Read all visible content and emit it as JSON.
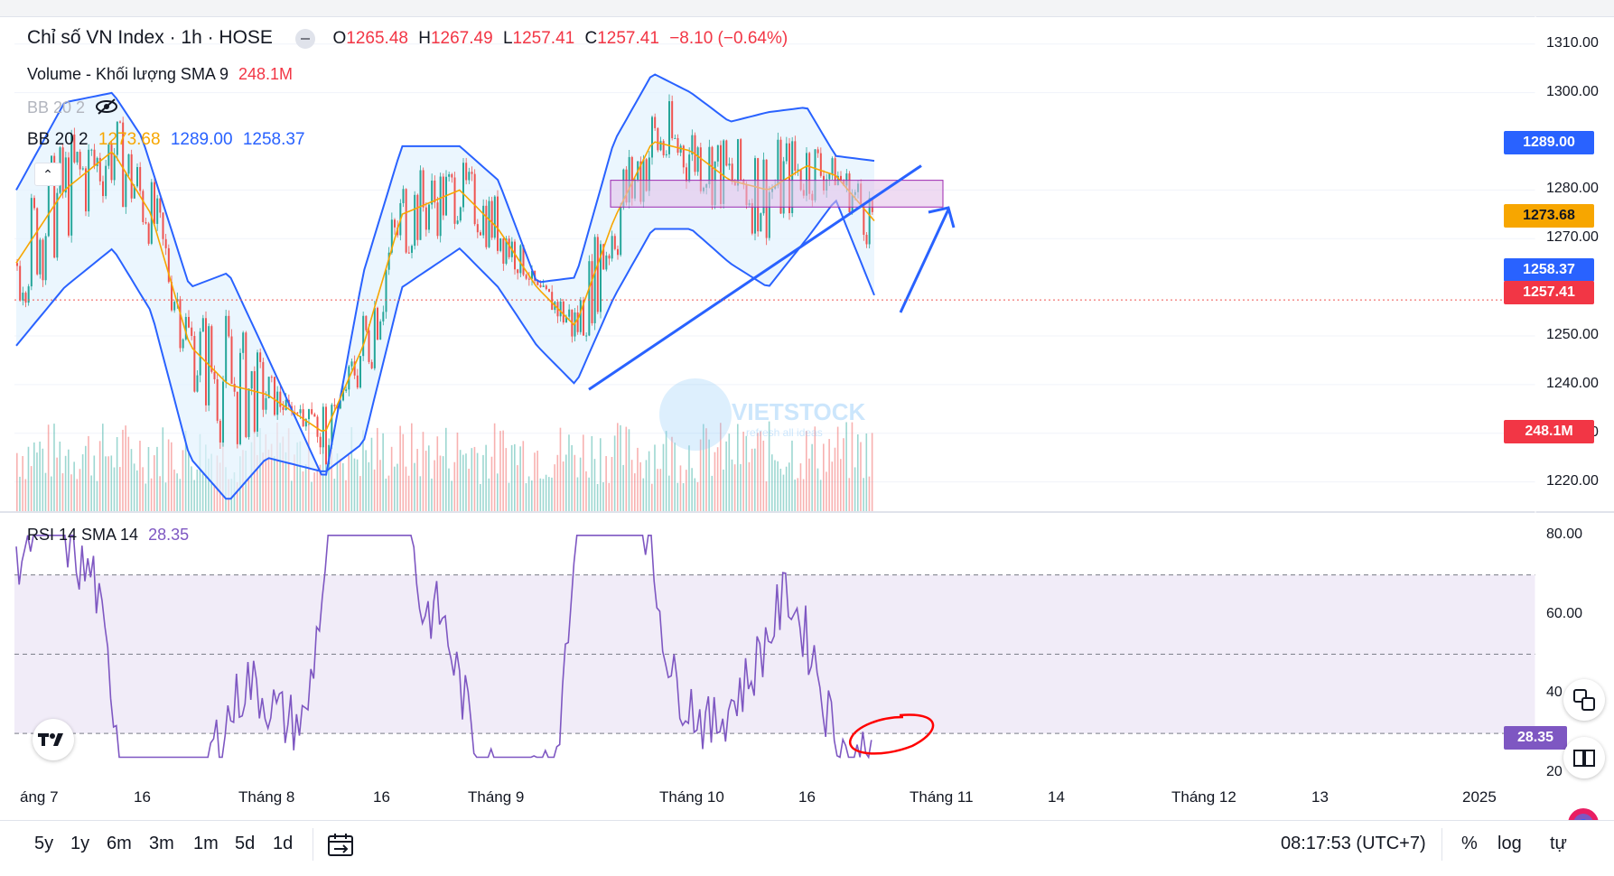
{
  "header": {
    "symbol_title": "Chỉ số VN Index · 1h · HOSE",
    "ohlc": {
      "o_label": "O",
      "o_value": "1265.48",
      "h_label": "H",
      "h_value": "1267.49",
      "l_label": "L",
      "l_value": "1257.41",
      "c_label": "C",
      "c_value": "1257.41",
      "change": "−8.10 (−0.64%)"
    },
    "volume_label": "Volume - Khối lượng SMA 9",
    "volume_value": "248.1M",
    "bb_hidden_label": "BB 20 2",
    "bb_label": "BB 20 2",
    "bb_mid": "1273.68",
    "bb_upper": "1289.00",
    "bb_lower": "1258.37",
    "rsi_label": "RSI 14 SMA 14",
    "rsi_value": "28.35"
  },
  "price_tags": {
    "upper": "1289.00",
    "mid": "1273.68",
    "lower": "1258.37",
    "last": "1257.41",
    "volume": "248.1M",
    "rsi": "28.35"
  },
  "colors": {
    "up": "#26a69a",
    "down": "#ef5350",
    "bb_band": "#2962ff",
    "bb_mid": "#f7a600",
    "bb_fill": "#e3f2fd",
    "rsi_line": "#7e57c2",
    "rsi_fill": "#ede7f6",
    "annotation_blue": "#2962ff",
    "annotation_red": "#ff0000",
    "zone_fill": "#e1bee7"
  },
  "watermark": {
    "text": "VIETSTOCK",
    "sub": "refresh all ideas"
  },
  "bottom_bar": {
    "ranges": [
      "5y",
      "1y",
      "6m",
      "3m",
      "1m",
      "5d",
      "1d"
    ],
    "time": "08:17:53 (UTC+7)",
    "percent": "%",
    "log": "log",
    "auto": "tự"
  },
  "chart_data": [
    {
      "type": "candlestick",
      "title": "Chỉ số VN Index · 1h · HOSE",
      "y_axis_ticks": [
        "1310.00",
        "1300.00",
        "1280.00",
        "1270.00",
        "1250.00",
        "1240.00",
        "1230.00",
        "1220.00"
      ],
      "ylim": [
        1214,
        1312
      ],
      "x_axis_ticks": [
        "áng 7",
        "16",
        "Tháng 8",
        "16",
        "Tháng 9",
        "Tháng 10",
        "16",
        "Tháng 11",
        "14",
        "Tháng 12",
        "13",
        "2025"
      ],
      "last_close": 1257.41,
      "series": [
        {
          "name": "BB upper",
          "points": [
            [
              0,
              1280
            ],
            [
              5,
              1298
            ],
            [
              10,
              1300
            ],
            [
              13,
              1291
            ],
            [
              18,
              1260
            ],
            [
              22,
              1263
            ],
            [
              26,
              1246
            ],
            [
              32,
              1220
            ],
            [
              36,
              1263
            ],
            [
              40,
              1289
            ],
            [
              46,
              1289
            ],
            [
              50,
              1282
            ],
            [
              54,
              1261
            ],
            [
              58,
              1262
            ],
            [
              62,
              1290
            ],
            [
              66,
              1304
            ],
            [
              70,
              1300
            ],
            [
              74,
              1294
            ],
            [
              78,
              1296
            ],
            [
              82,
              1297
            ],
            [
              85,
              1287
            ],
            [
              89,
              1286
            ]
          ]
        },
        {
          "name": "BB middle",
          "points": [
            [
              0,
              1265
            ],
            [
              5,
              1280
            ],
            [
              10,
              1288
            ],
            [
              14,
              1275
            ],
            [
              18,
              1248
            ],
            [
              22,
              1240
            ],
            [
              26,
              1238
            ],
            [
              32,
              1230
            ],
            [
              36,
              1248
            ],
            [
              40,
              1275
            ],
            [
              46,
              1280
            ],
            [
              50,
              1272
            ],
            [
              54,
              1260
            ],
            [
              58,
              1252
            ],
            [
              62,
              1274
            ],
            [
              66,
              1290
            ],
            [
              70,
              1288
            ],
            [
              74,
              1282
            ],
            [
              78,
              1280
            ],
            [
              82,
              1285
            ],
            [
              85,
              1283
            ],
            [
              89,
              1273.68
            ]
          ]
        },
        {
          "name": "BB lower",
          "points": [
            [
              0,
              1248
            ],
            [
              5,
              1260
            ],
            [
              10,
              1268
            ],
            [
              14,
              1255
            ],
            [
              18,
              1225
            ],
            [
              22,
              1216
            ],
            [
              26,
              1225
            ],
            [
              32,
              1222
            ],
            [
              36,
              1228
            ],
            [
              40,
              1260
            ],
            [
              46,
              1268
            ],
            [
              50,
              1260
            ],
            [
              54,
              1248
            ],
            [
              58,
              1240
            ],
            [
              62,
              1258
            ],
            [
              66,
              1272
            ],
            [
              70,
              1272
            ],
            [
              74,
              1265
            ],
            [
              78,
              1260
            ],
            [
              82,
              1270
            ],
            [
              85,
              1278
            ],
            [
              89,
              1258.37
            ]
          ]
        }
      ],
      "annotations": [
        {
          "type": "zone",
          "y_range": [
            1276.5,
            1282
          ]
        },
        {
          "type": "trendline",
          "from": [
            1239,
            "Tháng 9"
          ],
          "to": [
            1285,
            "Tháng 11"
          ]
        },
        {
          "type": "arrow",
          "direction": "up"
        }
      ]
    },
    {
      "type": "line",
      "title": "RSI 14 SMA 14",
      "y_axis_ticks": [
        "80.00",
        "60.00",
        "40",
        "20"
      ],
      "ylim": [
        20,
        82
      ],
      "levels": [
        70,
        50,
        30
      ],
      "last_value": 28.35
    }
  ]
}
